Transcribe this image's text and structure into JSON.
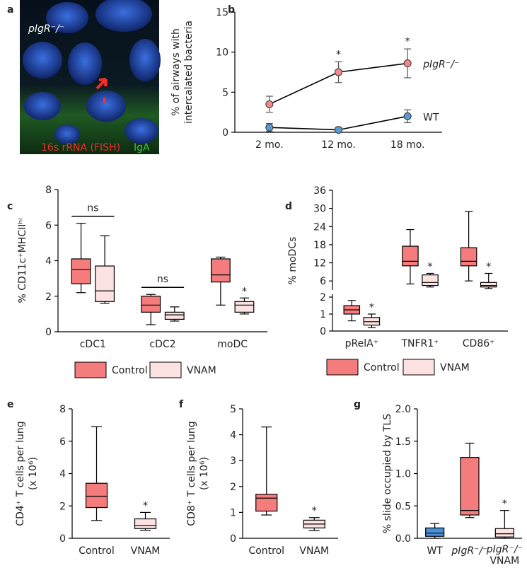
{
  "chart_data": [
    {
      "panel": "a",
      "type": "image",
      "label": "pIgR⁻/⁻",
      "caption": [
        "16s rRNA (FISH)",
        "IgA"
      ]
    },
    {
      "panel": "b",
      "type": "line",
      "categories": [
        "2 mo.",
        "12 mo.",
        "18 mo."
      ],
      "ylabel": [
        "% of airways with",
        "intercalated bacteria"
      ],
      "ylim": [
        0,
        15
      ],
      "yticks": [
        0,
        5,
        10,
        15
      ],
      "series": [
        {
          "name": "pIgR⁻/⁻",
          "color": "#f08a8a",
          "values": [
            3.5,
            7.5,
            8.6
          ],
          "errors": [
            1.0,
            1.3,
            1.8
          ]
        },
        {
          "name": "WT",
          "color": "#5b9bd5",
          "values": [
            0.6,
            0.3,
            2.0
          ],
          "errors": [
            0.5,
            0.3,
            0.8
          ]
        }
      ],
      "significance": [
        null,
        "*",
        "*"
      ]
    },
    {
      "panel": "c",
      "type": "box",
      "categories": [
        "cDC1",
        "cDC2",
        "moDC"
      ],
      "ylabel": [
        "% CD11c⁺MHCIIʰⁱ"
      ],
      "ylim": [
        0,
        8
      ],
      "yticks": [
        0,
        2,
        4,
        6,
        8
      ],
      "series": [
        {
          "name": "Control",
          "color": "#f47c7c",
          "values": [
            {
              "min": 2.2,
              "q1": 2.7,
              "median": 3.5,
              "q3": 4.1,
              "max": 6.1
            },
            {
              "min": 0.4,
              "q1": 1.1,
              "median": 1.5,
              "q3": 2.0,
              "max": 2.1
            },
            {
              "min": 1.5,
              "q1": 2.8,
              "median": 3.2,
              "q3": 4.1,
              "max": 4.2
            }
          ]
        },
        {
          "name": "VNAM",
          "color": "#fde2e2",
          "values": [
            {
              "min": 1.6,
              "q1": 1.7,
              "median": 2.3,
              "q3": 3.7,
              "max": 5.4
            },
            {
              "min": 0.6,
              "q1": 0.7,
              "median": 0.95,
              "q3": 1.1,
              "max": 1.4
            },
            {
              "min": 1.0,
              "q1": 1.1,
              "median": 1.5,
              "q3": 1.7,
              "max": 1.9
            }
          ]
        }
      ],
      "significance": [
        "ns",
        "ns",
        "*"
      ]
    },
    {
      "panel": "d",
      "type": "box",
      "categories": [
        "pRelA⁺",
        "TNFR1⁺",
        "CD86⁺"
      ],
      "ylabel": [
        "% moDCs"
      ],
      "ylim": [
        0,
        2
      ],
      "yticks": [
        0,
        1,
        2
      ],
      "ylim_upper": [
        3,
        36
      ],
      "yticks_upper": [
        6,
        12,
        18,
        24,
        30,
        36
      ],
      "series": [
        {
          "name": "Control",
          "color": "#f47c7c",
          "values": [
            {
              "min": 0.6,
              "q1": 1.0,
              "median": 1.25,
              "q3": 1.5,
              "max": 1.8
            },
            {
              "min": 5,
              "q1": 11,
              "median": 12.5,
              "q3": 17.5,
              "max": 23
            },
            {
              "min": 6,
              "q1": 11,
              "median": 12.5,
              "q3": 17,
              "max": 29
            }
          ]
        },
        {
          "name": "VNAM",
          "color": "#fde2e2",
          "values": [
            {
              "min": 0.2,
              "q1": 0.35,
              "median": 0.55,
              "q3": 0.8,
              "max": 1.0
            },
            {
              "min": 4,
              "q1": 4.5,
              "median": 5.5,
              "q3": 8,
              "max": 8.5
            },
            {
              "min": 3.5,
              "q1": 4,
              "median": 4.5,
              "q3": 5.5,
              "max": 8.5
            }
          ]
        }
      ],
      "significance": [
        "*",
        "*",
        "*"
      ]
    },
    {
      "panel": "e",
      "type": "box",
      "categories": [
        "Control",
        "VNAM"
      ],
      "ylabel": [
        "CD4⁺ T cells per lung",
        "(x 10⁶)"
      ],
      "ylim": [
        0,
        8
      ],
      "yticks": [
        0,
        2,
        4,
        6,
        8
      ],
      "colors": [
        "#f47c7c",
        "#fde2e2"
      ],
      "values": [
        {
          "min": 1.1,
          "q1": 1.9,
          "median": 2.6,
          "q3": 3.4,
          "max": 6.9
        },
        {
          "min": 0.5,
          "q1": 0.6,
          "median": 0.8,
          "q3": 1.2,
          "max": 1.6
        }
      ],
      "significance": [
        null,
        "*"
      ]
    },
    {
      "panel": "f",
      "type": "box",
      "categories": [
        "Control",
        "VNAM"
      ],
      "ylabel": [
        "CD8⁺ T cells per lung",
        "(x 10⁶)"
      ],
      "ylim": [
        0,
        5
      ],
      "yticks": [
        0,
        1,
        2,
        3,
        4,
        5
      ],
      "colors": [
        "#f47c7c",
        "#fde2e2"
      ],
      "values": [
        {
          "min": 0.9,
          "q1": 1.05,
          "median": 1.55,
          "q3": 1.7,
          "max": 4.3
        },
        {
          "min": 0.3,
          "q1": 0.4,
          "median": 0.55,
          "q3": 0.7,
          "max": 0.8
        }
      ],
      "significance": [
        null,
        "*"
      ]
    },
    {
      "panel": "g",
      "type": "box",
      "categories": [
        "WT",
        "pIgR⁻/⁻",
        [
          "pIgR⁻/⁻",
          "VNAM"
        ]
      ],
      "ylabel": [
        "% slide occupied by TLS"
      ],
      "ylim": [
        0,
        2
      ],
      "yticks": [
        {
          "value": 0,
          "label": "0.0"
        },
        0.5,
        {
          "value": 1,
          "label": "1.0"
        },
        1.5,
        {
          "value": 2,
          "label": "2.0"
        }
      ],
      "colors": [
        "#4a90d9",
        "#f47c7c",
        "#fde2e2"
      ],
      "values": [
        {
          "min": 0.0,
          "q1": 0.03,
          "median": 0.08,
          "q3": 0.16,
          "max": 0.23
        },
        {
          "min": 0.32,
          "q1": 0.36,
          "median": 0.43,
          "q3": 1.25,
          "max": 1.47
        },
        {
          "min": 0.0,
          "q1": 0.02,
          "median": 0.07,
          "q3": 0.15,
          "max": 0.43
        }
      ],
      "significance": [
        null,
        null,
        "*"
      ]
    }
  ]
}
